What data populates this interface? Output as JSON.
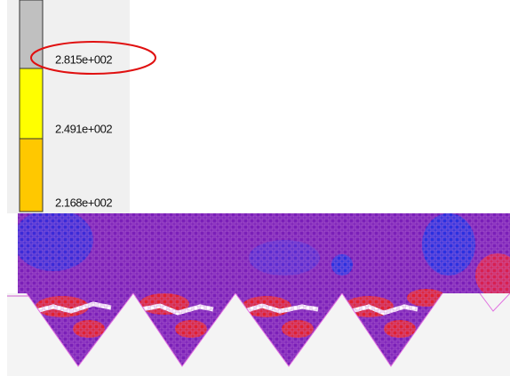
{
  "legend": {
    "labels": [
      "2.815e+002",
      "2.491e+002",
      "2.168e+002"
    ]
  }
}
